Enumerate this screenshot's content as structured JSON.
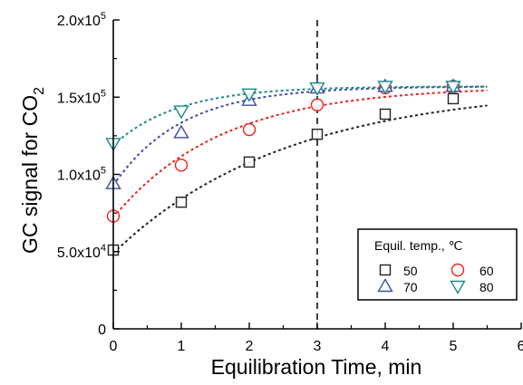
{
  "chart_data": {
    "type": "scatter",
    "xlabel": "Equilibration Time, min",
    "ylabel_main": "GC signal for CO",
    "ylabel_sub": "2",
    "xlim": [
      0,
      6
    ],
    "ylim": [
      0,
      200000
    ],
    "x_ticks": [
      0,
      1,
      2,
      3,
      4,
      5,
      6
    ],
    "x_tick_labels": [
      "0",
      "1",
      "2",
      "3",
      "4",
      "5",
      "6"
    ],
    "y_ticks": [
      {
        "value": 0,
        "mantissa": "0",
        "exp": ""
      },
      {
        "value": 50000,
        "mantissa": "5.0x10",
        "exp": "4"
      },
      {
        "value": 100000,
        "mantissa": "1.0x10",
        "exp": "5"
      },
      {
        "value": 150000,
        "mantissa": "1.5x10",
        "exp": "5"
      },
      {
        "value": 200000,
        "mantissa": "2.0x10",
        "exp": "5"
      }
    ],
    "vertical_reference_line_x": 3,
    "legend": {
      "title": "Equil. temp., ℃",
      "placement": "bottom-right"
    },
    "series": [
      {
        "name": "50",
        "marker": "square",
        "color": "#222222",
        "x": [
          0,
          1,
          2,
          3,
          4,
          5
        ],
        "y": [
          51000,
          82000,
          108000,
          126000,
          139000,
          149000
        ],
        "fit": {
          "plateau": 157000,
          "start": 49000,
          "k": 0.393,
          "x_end": 5.5
        }
      },
      {
        "name": "60",
        "marker": "circle",
        "color": "#e8231f",
        "x": [
          0,
          1,
          2,
          3,
          4,
          5
        ],
        "y": [
          73000,
          106000,
          129000,
          145000,
          156000,
          157000
        ],
        "fit": {
          "plateau": 157000,
          "start": 72000,
          "k": 0.63,
          "x_end": 5.5
        }
      },
      {
        "name": "70",
        "marker": "triangle-up",
        "color": "#3d4fa3",
        "x": [
          0,
          1,
          2,
          3,
          4,
          5
        ],
        "y": [
          94000,
          127000,
          148000,
          156000,
          157000,
          157000
        ],
        "fit": {
          "plateau": 157000,
          "start": 93000,
          "k": 1.0,
          "x_end": 5.5
        }
      },
      {
        "name": "80",
        "marker": "triangle-down",
        "color": "#1a8a87",
        "x": [
          0,
          1,
          2,
          3,
          4,
          5
        ],
        "y": [
          120000,
          141000,
          152000,
          156000,
          157000,
          157000
        ],
        "fit": {
          "plateau": 157000,
          "start": 119000,
          "k": 1.05,
          "x_end": 5.5
        }
      }
    ]
  }
}
